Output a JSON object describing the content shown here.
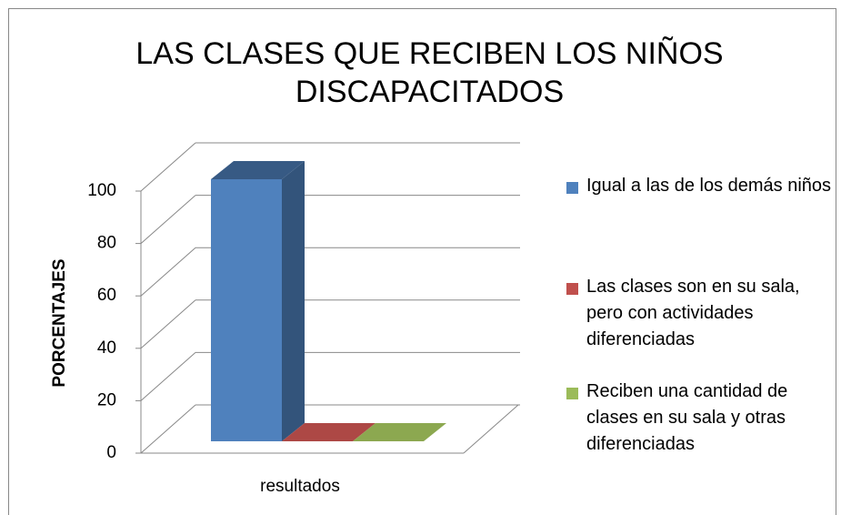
{
  "chart_data": {
    "type": "bar",
    "title": "LAS CLASES QUE RECIBEN LOS NIÑOS DISCAPACITADOS",
    "categories": [
      "resultados"
    ],
    "series": [
      {
        "name": "Igual a las de los demás niños",
        "color": "#4f81bd",
        "values": [
          100
        ]
      },
      {
        "name": "Las clases son en su sala, pero con actividades diferenciadas",
        "color": "#c0504d",
        "values": [
          0
        ]
      },
      {
        "name": "Reciben una cantidad de clases en su sala y otras diferenciadas",
        "color": "#9bbb59",
        "values": [
          0
        ]
      }
    ],
    "ylabel": "PORCENTAJES",
    "ylim": [
      0,
      100
    ],
    "yticks": [
      0,
      20,
      40,
      60,
      80,
      100
    ],
    "grid": true,
    "legend": "right"
  }
}
